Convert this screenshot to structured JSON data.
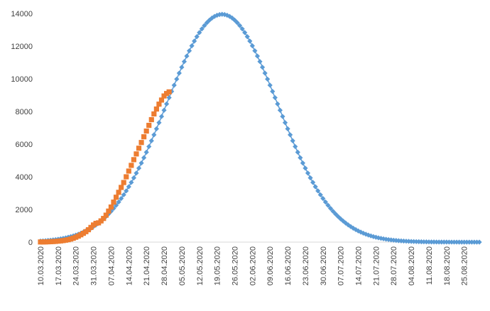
{
  "chart_data": {
    "type": "scatter",
    "title": "",
    "xlabel": "",
    "ylabel": "",
    "x_start": "10.03.2020",
    "x_end": "31.08.2020",
    "x_tick_labels": [
      "10.03.2020",
      "17.03.2020",
      "24.03.2020",
      "31.03.2020",
      "07.04.2020",
      "14.04.2020",
      "21.04.2020",
      "28.04.2020",
      "05.05.2020",
      "12.05.2020",
      "19.05.2020",
      "26.05.2020",
      "02.06.2020",
      "09.06.2020",
      "16.06.2020",
      "23.06.2020",
      "30.06.2020",
      "07.07.2020",
      "14.07.2020",
      "21.07.2020",
      "28.07.2020",
      "04.08.2020",
      "11.08.2020",
      "18.08.2020",
      "25.08.2020"
    ],
    "y_ticks": [
      0,
      2000,
      4000,
      6000,
      8000,
      10000,
      12000,
      14000
    ],
    "ylim": [
      0,
      14000
    ],
    "grid": false,
    "legend": "none",
    "series": [
      {
        "color": "#5B9BD5",
        "marker": "diamond",
        "model": "gaussian",
        "peak_value": 13950,
        "peak_date": "21.05.2020"
      },
      {
        "color": "#ED7D31",
        "marker": "square",
        "x": [
          "10.03.2020",
          "11.03.2020",
          "12.03.2020",
          "13.03.2020",
          "14.03.2020",
          "15.03.2020",
          "16.03.2020",
          "17.03.2020",
          "18.03.2020",
          "19.03.2020",
          "20.03.2020",
          "21.03.2020",
          "22.03.2020",
          "23.03.2020",
          "24.03.2020",
          "25.03.2020",
          "26.03.2020",
          "27.03.2020",
          "28.03.2020",
          "29.03.2020",
          "30.03.2020",
          "31.03.2020",
          "01.04.2020",
          "02.04.2020",
          "03.04.2020",
          "04.04.2020",
          "05.04.2020",
          "06.04.2020",
          "07.04.2020",
          "08.04.2020",
          "09.04.2020",
          "10.04.2020",
          "11.04.2020",
          "12.04.2020",
          "13.04.2020",
          "14.04.2020",
          "15.04.2020",
          "16.04.2020",
          "17.04.2020",
          "18.04.2020",
          "19.04.2020",
          "20.04.2020",
          "21.04.2020",
          "22.04.2020",
          "23.04.2020",
          "24.04.2020",
          "25.04.2020",
          "26.04.2020",
          "27.04.2020",
          "28.04.2020",
          "29.04.2020",
          "30.04.2020"
        ],
        "values": [
          10,
          12,
          15,
          20,
          28,
          35,
          45,
          60,
          75,
          95,
          120,
          150,
          190,
          240,
          300,
          370,
          450,
          540,
          640,
          760,
          900,
          1050,
          1150,
          1180,
          1300,
          1450,
          1650,
          1900,
          2150,
          2450,
          2750,
          3050,
          3350,
          3650,
          4000,
          4350,
          4700,
          5050,
          5400,
          5750,
          6100,
          6450,
          6800,
          7150,
          7500,
          7850,
          8150,
          8450,
          8700,
          8950,
          9100,
          9200
        ]
      }
    ]
  }
}
